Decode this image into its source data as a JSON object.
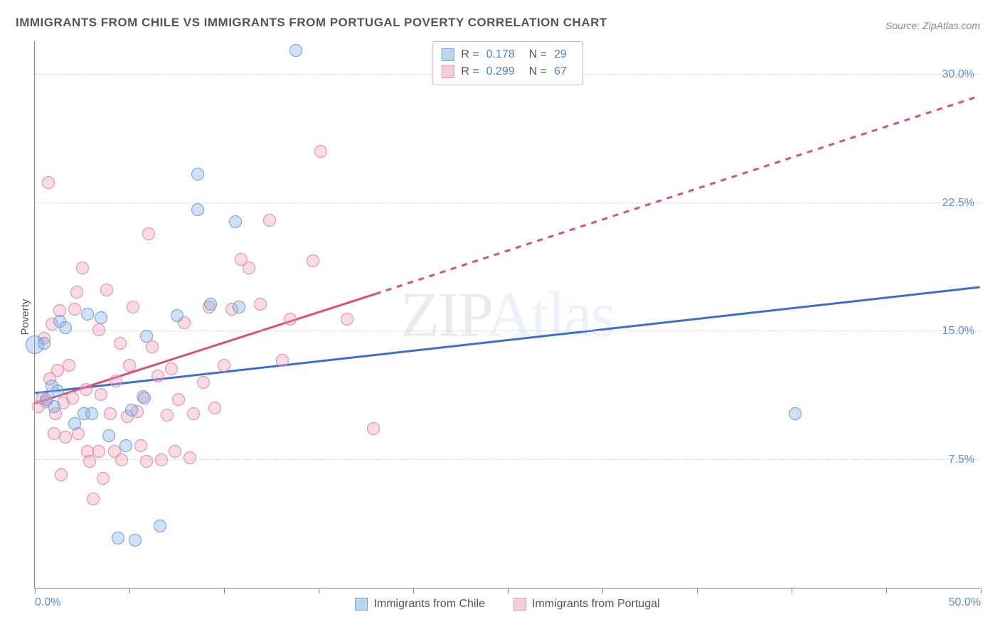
{
  "title": "IMMIGRANTS FROM CHILE VS IMMIGRANTS FROM PORTUGAL POVERTY CORRELATION CHART",
  "source_label": "Source: ZipAtlas.com",
  "ylabel": "Poverty",
  "watermark": {
    "left": "ZIP",
    "right": "Atlas"
  },
  "chart": {
    "type": "scatter",
    "background_color": "#ffffff",
    "grid_color": "#d7d7d7",
    "axis_color": "#888888",
    "tick_label_color": "#5b8dd6",
    "xlim": [
      0,
      50
    ],
    "ylim": [
      0,
      32
    ],
    "x_ticks": [
      0,
      5,
      10,
      15,
      20,
      25,
      30,
      35,
      40,
      45,
      50
    ],
    "x_tick_labels": {
      "0": "0.0%",
      "50": "50.0%"
    },
    "y_gridlines": [
      7.5,
      15.0,
      22.5,
      30.0
    ],
    "y_tick_labels": {
      "7.5": "7.5%",
      "15.0": "15.0%",
      "22.5": "22.5%",
      "30.0": "30.0%"
    },
    "marker_radius": 9,
    "marker_stroke_width": 1.5,
    "series": [
      {
        "id": "chile",
        "label": "Immigrants from Chile",
        "fill_color": "rgba(120,170,230,0.35)",
        "stroke_color": "#6b9fd9",
        "swatch_fill": "#bcd5ef",
        "swatch_border": "#7aa8d8",
        "stats": {
          "R_label": "R =",
          "R": "0.178",
          "N_label": "N =",
          "N": "29"
        },
        "trend_line": {
          "color": "#3b6fc9",
          "width": 3,
          "solid": {
            "x1": 0,
            "y1": 11.4,
            "x2": 50,
            "y2": 17.6
          },
          "dashed": null
        },
        "points": [
          {
            "x": 0.0,
            "y": 14.2,
            "r": 13
          },
          {
            "x": 0.5,
            "y": 14.3
          },
          {
            "x": 0.6,
            "y": 11.0
          },
          {
            "x": 0.9,
            "y": 11.8
          },
          {
            "x": 1.0,
            "y": 10.6
          },
          {
            "x": 1.2,
            "y": 11.5
          },
          {
            "x": 1.3,
            "y": 15.6
          },
          {
            "x": 1.6,
            "y": 15.2
          },
          {
            "x": 2.1,
            "y": 9.6
          },
          {
            "x": 2.6,
            "y": 10.2
          },
          {
            "x": 2.8,
            "y": 16.0
          },
          {
            "x": 3.0,
            "y": 10.2
          },
          {
            "x": 3.5,
            "y": 15.8
          },
          {
            "x": 3.9,
            "y": 8.9
          },
          {
            "x": 4.4,
            "y": 2.9
          },
          {
            "x": 4.8,
            "y": 8.3
          },
          {
            "x": 5.1,
            "y": 10.4
          },
          {
            "x": 5.3,
            "y": 2.8
          },
          {
            "x": 5.8,
            "y": 11.1
          },
          {
            "x": 5.9,
            "y": 14.7
          },
          {
            "x": 6.6,
            "y": 3.6
          },
          {
            "x": 7.5,
            "y": 15.9
          },
          {
            "x": 8.6,
            "y": 22.1
          },
          {
            "x": 8.6,
            "y": 24.2
          },
          {
            "x": 9.3,
            "y": 16.6
          },
          {
            "x": 10.6,
            "y": 21.4
          },
          {
            "x": 10.8,
            "y": 16.4
          },
          {
            "x": 13.8,
            "y": 31.4
          },
          {
            "x": 40.2,
            "y": 10.2
          }
        ]
      },
      {
        "id": "portugal",
        "label": "Immigrants from Portugal",
        "fill_color": "rgba(240,150,175,0.35)",
        "stroke_color": "#e28aa3",
        "swatch_fill": "#f5cdd8",
        "swatch_border": "#e09cb1",
        "stats": {
          "R_label": "R =",
          "R": "0.299",
          "N_label": "N =",
          "N": "67"
        },
        "trend_line": {
          "color": "#d94f78",
          "width": 3,
          "solid": {
            "x1": 0,
            "y1": 10.8,
            "x2": 18,
            "y2": 17.2
          },
          "dashed": {
            "x1": 18,
            "y1": 17.2,
            "x2": 50,
            "y2": 28.8
          }
        },
        "points": [
          {
            "x": 0.2,
            "y": 10.6
          },
          {
            "x": 0.4,
            "y": 11.1
          },
          {
            "x": 0.5,
            "y": 14.6
          },
          {
            "x": 0.6,
            "y": 10.9
          },
          {
            "x": 0.7,
            "y": 23.7
          },
          {
            "x": 0.8,
            "y": 12.2
          },
          {
            "x": 0.9,
            "y": 15.4
          },
          {
            "x": 1.0,
            "y": 9.0
          },
          {
            "x": 1.1,
            "y": 10.2
          },
          {
            "x": 1.2,
            "y": 12.7
          },
          {
            "x": 1.3,
            "y": 16.2
          },
          {
            "x": 1.4,
            "y": 6.6
          },
          {
            "x": 1.5,
            "y": 10.8
          },
          {
            "x": 1.6,
            "y": 8.8
          },
          {
            "x": 1.8,
            "y": 13.0
          },
          {
            "x": 2.0,
            "y": 11.1
          },
          {
            "x": 2.1,
            "y": 16.3
          },
          {
            "x": 2.2,
            "y": 17.3
          },
          {
            "x": 2.3,
            "y": 9.0
          },
          {
            "x": 2.5,
            "y": 18.7
          },
          {
            "x": 2.7,
            "y": 11.6
          },
          {
            "x": 2.8,
            "y": 8.0
          },
          {
            "x": 2.9,
            "y": 7.4
          },
          {
            "x": 3.1,
            "y": 5.2
          },
          {
            "x": 3.4,
            "y": 8.0
          },
          {
            "x": 3.4,
            "y": 15.1
          },
          {
            "x": 3.5,
            "y": 11.3
          },
          {
            "x": 3.6,
            "y": 6.4
          },
          {
            "x": 3.8,
            "y": 17.4
          },
          {
            "x": 4.0,
            "y": 10.2
          },
          {
            "x": 4.2,
            "y": 8.0
          },
          {
            "x": 4.3,
            "y": 12.1
          },
          {
            "x": 4.5,
            "y": 14.3
          },
          {
            "x": 4.6,
            "y": 7.5
          },
          {
            "x": 4.9,
            "y": 10.0
          },
          {
            "x": 5.0,
            "y": 13.0
          },
          {
            "x": 5.2,
            "y": 16.4
          },
          {
            "x": 5.4,
            "y": 10.3
          },
          {
            "x": 5.6,
            "y": 8.3
          },
          {
            "x": 5.7,
            "y": 11.2
          },
          {
            "x": 5.9,
            "y": 7.4
          },
          {
            "x": 6.0,
            "y": 20.7
          },
          {
            "x": 6.2,
            "y": 14.1
          },
          {
            "x": 6.5,
            "y": 12.4
          },
          {
            "x": 6.7,
            "y": 7.5
          },
          {
            "x": 7.0,
            "y": 10.1
          },
          {
            "x": 7.2,
            "y": 12.8
          },
          {
            "x": 7.4,
            "y": 8.0
          },
          {
            "x": 7.6,
            "y": 11.0
          },
          {
            "x": 7.9,
            "y": 15.5
          },
          {
            "x": 8.2,
            "y": 7.6
          },
          {
            "x": 8.4,
            "y": 10.2
          },
          {
            "x": 8.9,
            "y": 12.0
          },
          {
            "x": 9.2,
            "y": 16.4
          },
          {
            "x": 9.5,
            "y": 10.5
          },
          {
            "x": 10.0,
            "y": 13.0
          },
          {
            "x": 10.4,
            "y": 16.3
          },
          {
            "x": 10.9,
            "y": 19.2
          },
          {
            "x": 11.3,
            "y": 18.7
          },
          {
            "x": 11.9,
            "y": 16.6
          },
          {
            "x": 12.4,
            "y": 21.5
          },
          {
            "x": 13.1,
            "y": 13.3
          },
          {
            "x": 13.5,
            "y": 15.7
          },
          {
            "x": 14.7,
            "y": 19.1
          },
          {
            "x": 15.1,
            "y": 25.5
          },
          {
            "x": 16.5,
            "y": 15.7
          },
          {
            "x": 17.9,
            "y": 9.3
          }
        ]
      }
    ]
  },
  "bottom_legend": [
    {
      "series": "chile"
    },
    {
      "series": "portugal"
    }
  ]
}
